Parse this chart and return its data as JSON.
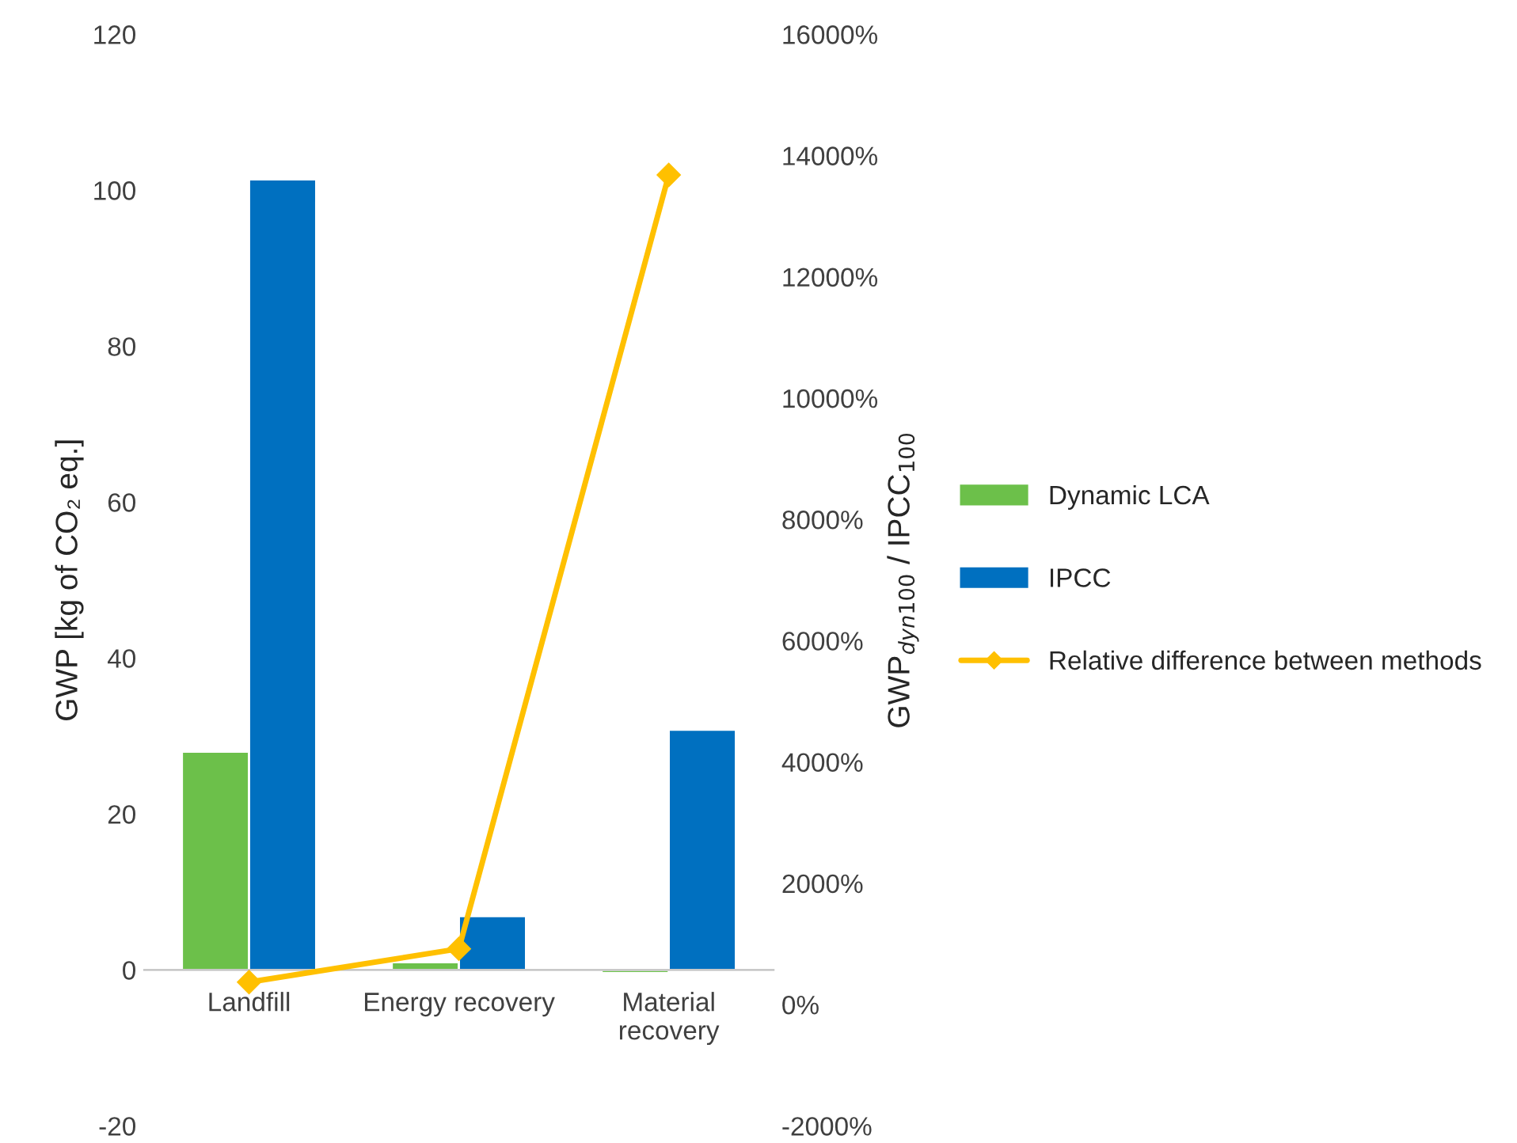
{
  "chart_data": {
    "type": "bar",
    "categories": [
      "Landfill",
      "Energy recovery",
      "Material\nrecovery"
    ],
    "ylabel": "GWP [kg of CO₂ eq.]",
    "y2label": "GWP$_{dyn100}$ / IPCC$_{100}$",
    "series": [
      {
        "name": "Dynamic LCA",
        "color": "#6cc04a",
        "values": [
          28.0,
          1.0,
          -0.4
        ]
      },
      {
        "name": "IPCC",
        "color": "#0070c0",
        "values": [
          101.4,
          6.9,
          30.8
        ]
      },
      {
        "name": "Relative difference between methods",
        "type": "line",
        "axis": "y2",
        "color": "#ffc000",
        "values": [
          370,
          920,
          13680
        ]
      }
    ],
    "ylim": [
      -20,
      120
    ],
    "yticks": [
      -20,
      0,
      20,
      40,
      60,
      80,
      100,
      120
    ],
    "y2lim": [
      -2000,
      16000
    ],
    "y2ticks": [
      {
        "value": -2000,
        "label": "-2000%"
      },
      {
        "value": 0,
        "label": "0%"
      },
      {
        "value": 2000,
        "label": "2000%"
      },
      {
        "value": 4000,
        "label": "4000%"
      },
      {
        "value": 6000,
        "label": "6000%"
      },
      {
        "value": 8000,
        "label": "8000%"
      },
      {
        "value": 10000,
        "label": "10000%"
      },
      {
        "value": 12000,
        "label": "12000%"
      },
      {
        "value": 14000,
        "label": "14000%"
      },
      {
        "value": 16000,
        "label": "16000%"
      }
    ],
    "marker": "diamond",
    "line_style": "solid",
    "grid": false,
    "legend": "right"
  }
}
